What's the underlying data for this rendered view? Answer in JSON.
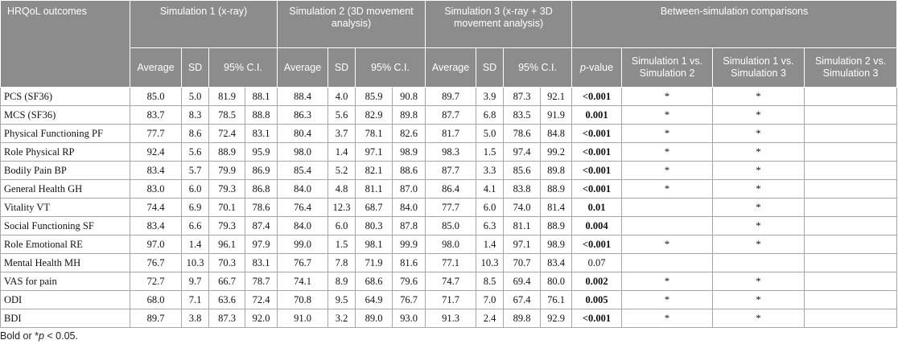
{
  "header": {
    "outcomes_label": "HRQoL outcomes",
    "sim1": "Simulation 1 (x-ray)",
    "sim2": "Simulation 2 (3D movement analysis)",
    "sim3": "Simulation 3 (x-ray + 3D movement analysis)",
    "comparisons": "Between-simulation comparisons",
    "average": "Average",
    "sd": "SD",
    "ci": "95% C.I.",
    "pvalue_italic": "p",
    "pvalue_suffix": "-value",
    "cmp12": "Simulation 1 vs. Simulation 2",
    "cmp13": "Simulation 1 vs. Simulation 3",
    "cmp23": "Simulation 2 vs. Simulation 3"
  },
  "rows": [
    {
      "outcome": "PCS (SF36)",
      "s1": [
        "85.0",
        "5.0",
        "81.9",
        "88.1"
      ],
      "s2": [
        "88.4",
        "4.0",
        "85.9",
        "90.8"
      ],
      "s3": [
        "89.7",
        "3.9",
        "87.3",
        "92.1"
      ],
      "p": "<0.001",
      "c12": "*",
      "c13": "*",
      "c23": ""
    },
    {
      "outcome": "MCS (SF36)",
      "s1": [
        "83.7",
        "8.3",
        "78.5",
        "88.8"
      ],
      "s2": [
        "86.3",
        "5.6",
        "82.9",
        "89.8"
      ],
      "s3": [
        "87.7",
        "6.8",
        "83.5",
        "91.9"
      ],
      "p": "0.001",
      "c12": "*",
      "c13": "*",
      "c23": ""
    },
    {
      "outcome": "Physical Functioning PF",
      "s1": [
        "77.7",
        "8.6",
        "72.4",
        "83.1"
      ],
      "s2": [
        "80.4",
        "3.7",
        "78.1",
        "82.6"
      ],
      "s3": [
        "81.7",
        "5.0",
        "78.6",
        "84.8"
      ],
      "p": "<0.001",
      "c12": "*",
      "c13": "*",
      "c23": ""
    },
    {
      "outcome": "Role Physical RP",
      "s1": [
        "92.4",
        "5.6",
        "88.9",
        "95.9"
      ],
      "s2": [
        "98.0",
        "1.4",
        "97.1",
        "98.9"
      ],
      "s3": [
        "98.3",
        "1.5",
        "97.4",
        "99.2"
      ],
      "p": "<0.001",
      "c12": "*",
      "c13": "*",
      "c23": ""
    },
    {
      "outcome": "Bodily Pain BP",
      "s1": [
        "83.4",
        "5.7",
        "79.9",
        "86.9"
      ],
      "s2": [
        "85.4",
        "5.2",
        "82.1",
        "88.6"
      ],
      "s3": [
        "87.7",
        "3.3",
        "85.6",
        "89.8"
      ],
      "p": "<0.001",
      "c12": "*",
      "c13": "*",
      "c23": ""
    },
    {
      "outcome": "General Health GH",
      "s1": [
        "83.0",
        "6.0",
        "79.3",
        "86.8"
      ],
      "s2": [
        "84.0",
        "4.8",
        "81.1",
        "87.0"
      ],
      "s3": [
        "86.4",
        "4.1",
        "83.8",
        "88.9"
      ],
      "p": "<0.001",
      "c12": "*",
      "c13": "*",
      "c23": ""
    },
    {
      "outcome": "Vitality VT",
      "s1": [
        "74.4",
        "6.9",
        "70.1",
        "78.6"
      ],
      "s2": [
        "76.4",
        "12.3",
        "68.7",
        "84.0"
      ],
      "s3": [
        "77.7",
        "6.0",
        "74.0",
        "81.4"
      ],
      "p": "0.01",
      "c12": "",
      "c13": "*",
      "c23": ""
    },
    {
      "outcome": "Social Functioning SF",
      "s1": [
        "83.4",
        "6.6",
        "79.3",
        "87.4"
      ],
      "s2": [
        "84.0",
        "6.0",
        "80.3",
        "87.8"
      ],
      "s3": [
        "85.0",
        "6.3",
        "81.1",
        "88.9"
      ],
      "p": "0.004",
      "c12": "",
      "c13": "*",
      "c23": ""
    },
    {
      "outcome": "Role Emotional RE",
      "s1": [
        "97.0",
        "1.4",
        "96.1",
        "97.9"
      ],
      "s2": [
        "99.0",
        "1.5",
        "98.1",
        "99.9"
      ],
      "s3": [
        "98.0",
        "1.4",
        "97.1",
        "98.9"
      ],
      "p": "<0.001",
      "c12": "*",
      "c13": "*",
      "c23": ""
    },
    {
      "outcome": "Mental Health MH",
      "s1": [
        "76.7",
        "10.3",
        "70.3",
        "83.1"
      ],
      "s2": [
        "76.7",
        "7.8",
        "71.9",
        "81.6"
      ],
      "s3": [
        "77.1",
        "10.3",
        "70.7",
        "83.4"
      ],
      "p": "0.07",
      "c12": "",
      "c13": "",
      "c23": ""
    },
    {
      "outcome": "VAS for pain",
      "s1": [
        "72.7",
        "9.7",
        "66.7",
        "78.7"
      ],
      "s2": [
        "74.1",
        "8.9",
        "68.6",
        "79.6"
      ],
      "s3": [
        "74.7",
        "8.5",
        "69.4",
        "80.0"
      ],
      "p": "0.002",
      "c12": "*",
      "c13": "*",
      "c23": ""
    },
    {
      "outcome": "ODI",
      "s1": [
        "68.0",
        "7.1",
        "63.6",
        "72.4"
      ],
      "s2": [
        "70.8",
        "9.5",
        "64.9",
        "76.7"
      ],
      "s3": [
        "71.7",
        "7.0",
        "67.4",
        "76.1"
      ],
      "p": "0.005",
      "c12": "*",
      "c13": "*",
      "c23": ""
    },
    {
      "outcome": "BDI",
      "s1": [
        "89.7",
        "3.8",
        "87.3",
        "92.0"
      ],
      "s2": [
        "91.0",
        "3.2",
        "89.0",
        "93.0"
      ],
      "s3": [
        "91.3",
        "2.4",
        "89.8",
        "92.9"
      ],
      "p": "<0.001",
      "c12": "*",
      "c13": "*",
      "c23": ""
    }
  ],
  "plain_p_rows": [
    9
  ],
  "footnote": {
    "prefix": "Bold or *",
    "italic": "p",
    "suffix": " < 0.05."
  }
}
